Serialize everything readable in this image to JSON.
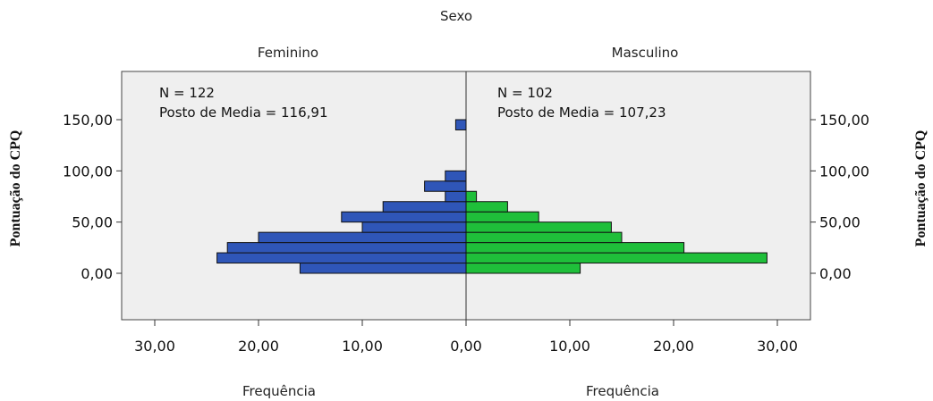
{
  "chart_data": {
    "type": "bar",
    "orientation": "population-pyramid",
    "title": "Sexo",
    "ylabel": "Pontuação do CPQ",
    "x_range": [
      -30,
      30
    ],
    "y_range": [
      -45,
      190
    ],
    "x_ticks": [
      {
        "value": -30,
        "label": "30,00"
      },
      {
        "value": -20,
        "label": "20,00"
      },
      {
        "value": -10,
        "label": "10,00"
      },
      {
        "value": 0,
        "label": "0,00"
      },
      {
        "value": 10,
        "label": "10,00"
      },
      {
        "value": 20,
        "label": "20,00"
      },
      {
        "value": 30,
        "label": "30,00"
      }
    ],
    "y_ticks": [
      {
        "value": 0,
        "label": "0,00"
      },
      {
        "value": 50,
        "label": "50,00"
      },
      {
        "value": 100,
        "label": "100,00"
      },
      {
        "value": 150,
        "label": "150,00"
      }
    ],
    "bin_width": 10,
    "bin_starts": [
      0,
      10,
      20,
      30,
      40,
      50,
      60,
      70,
      80,
      90,
      140
    ],
    "series": [
      {
        "name": "Feminino",
        "side": "left",
        "color": "#2f56b8",
        "xlabel": "Frequência",
        "n_label": "N = 122",
        "rank_label": "Posto de Media = 116,91",
        "values": [
          16,
          24,
          23,
          20,
          10,
          12,
          8,
          2,
          4,
          2,
          1
        ]
      },
      {
        "name": "Masculino",
        "side": "right",
        "color": "#1fbf3a",
        "xlabel": "Frequência",
        "n_label": "N = 102",
        "rank_label": "Posto de Media = 107,23",
        "values": [
          11,
          29,
          21,
          15,
          14,
          7,
          4,
          1,
          0,
          0,
          0
        ]
      }
    ],
    "plot_background": "#efefef",
    "grid": false
  }
}
